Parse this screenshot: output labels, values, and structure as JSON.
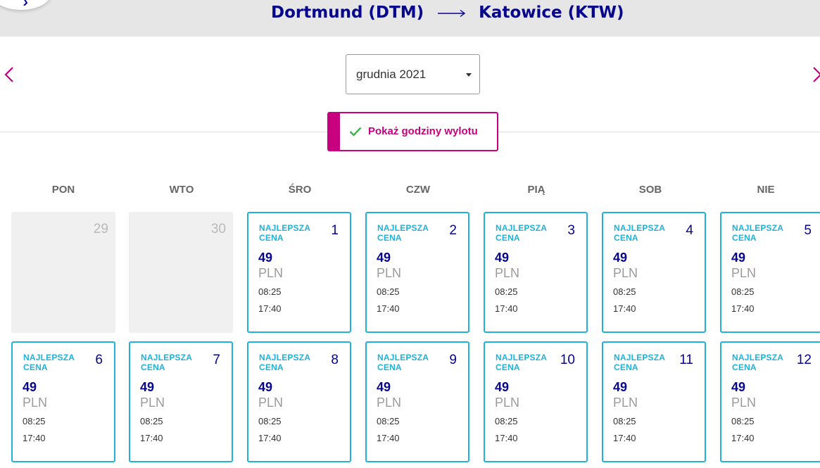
{
  "header": {
    "origin": "Dortmund (DTM)",
    "destination": "Katowice (KTW)",
    "arrow": "⟶"
  },
  "month_select": {
    "value": "grudnia 2021"
  },
  "toggle": {
    "label": "Pokaż godziny wylotu"
  },
  "weekdays": [
    "PON",
    "WTO",
    "ŚRO",
    "CZW",
    "PIĄ",
    "SOB",
    "NIE"
  ],
  "calendar": {
    "row1": [
      {
        "day": "29",
        "disabled": true
      },
      {
        "day": "30",
        "disabled": true
      },
      {
        "day": "1",
        "badge": "NAJLEPSZA CENA",
        "price": "49",
        "currency": "PLN",
        "times": [
          "08:25",
          "17:40"
        ]
      },
      {
        "day": "2",
        "badge": "NAJLEPSZA CENA",
        "price": "49",
        "currency": "PLN",
        "times": [
          "08:25",
          "17:40"
        ]
      },
      {
        "day": "3",
        "badge": "NAJLEPSZA CENA",
        "price": "49",
        "currency": "PLN",
        "times": [
          "08:25",
          "17:40"
        ]
      },
      {
        "day": "4",
        "badge": "NAJLEPSZA CENA",
        "price": "49",
        "currency": "PLN",
        "times": [
          "08:25",
          "17:40"
        ]
      },
      {
        "day": "5",
        "badge": "NAJLEPSZA CENA",
        "price": "49",
        "currency": "PLN",
        "times": [
          "08:25",
          "17:40"
        ]
      }
    ],
    "row2": [
      {
        "day": "6",
        "badge": "NAJLEPSZA CENA",
        "price": "49",
        "currency": "PLN",
        "times": [
          "08:25",
          "17:40"
        ]
      },
      {
        "day": "7",
        "badge": "NAJLEPSZA CENA",
        "price": "49",
        "currency": "PLN",
        "times": [
          "08:25",
          "17:40"
        ]
      },
      {
        "day": "8",
        "badge": "NAJLEPSZA CENA",
        "price": "49",
        "currency": "PLN",
        "times": [
          "08:25",
          "17:40"
        ]
      },
      {
        "day": "9",
        "badge": "NAJLEPSZA CENA",
        "price": "49",
        "currency": "PLN",
        "times": [
          "08:25",
          "17:40"
        ]
      },
      {
        "day": "10",
        "badge": "NAJLEPSZA CENA",
        "price": "49",
        "currency": "PLN",
        "times": [
          "08:25",
          "17:40"
        ]
      },
      {
        "day": "11",
        "badge": "NAJLEPSZA CENA",
        "price": "49",
        "currency": "PLN",
        "times": [
          "08:25",
          "17:40"
        ]
      },
      {
        "day": "12",
        "badge": "NAJLEPSZA CENA",
        "price": "49",
        "currency": "PLN",
        "times": [
          "08:25",
          "17:40"
        ]
      }
    ]
  },
  "colors": {
    "navy": "#06038d",
    "magenta": "#c6007e",
    "cyan": "#1fb2db",
    "check": "#3fb34f"
  }
}
